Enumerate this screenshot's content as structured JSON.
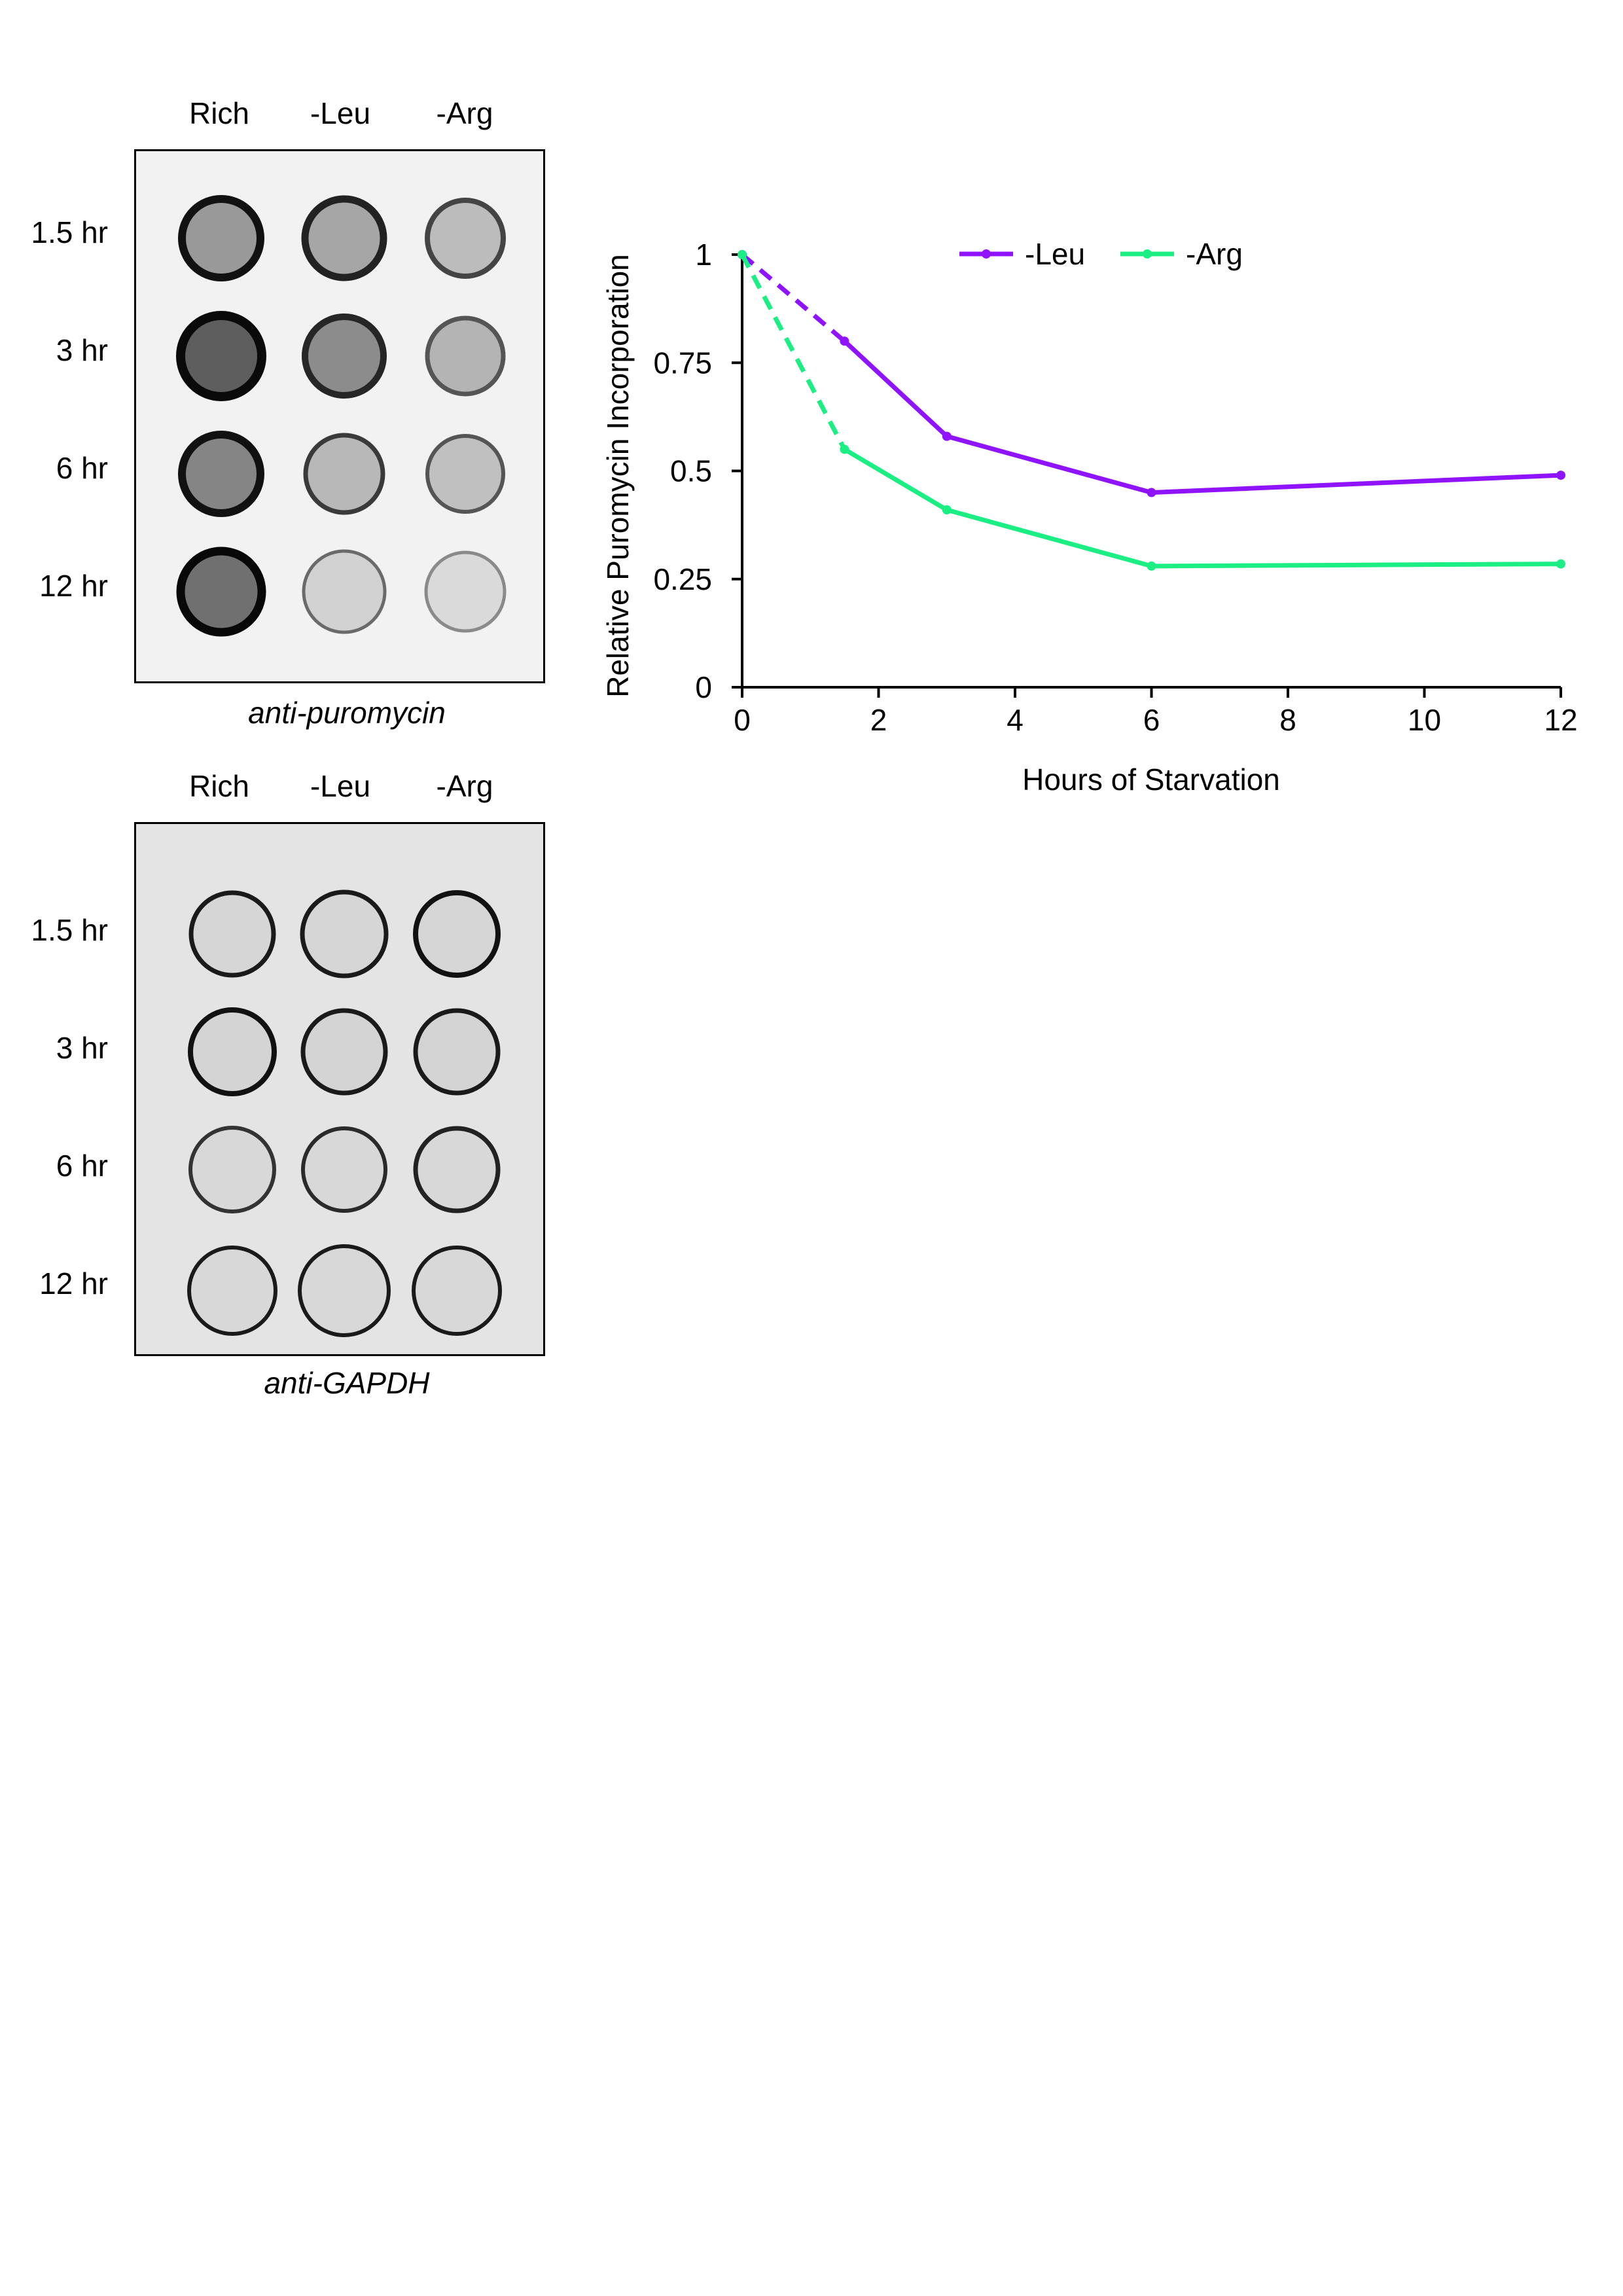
{
  "blot_top": {
    "columns": [
      "Rich",
      "-Leu",
      "-Arg"
    ],
    "rows": [
      "1.5 hr",
      "3 hr",
      "6 hr",
      "12 hr"
    ],
    "caption": "anti-puromycin"
  },
  "blot_bottom": {
    "columns": [
      "Rich",
      "-Leu",
      "-Arg"
    ],
    "rows": [
      "1.5 hr",
      "3 hr",
      "6 hr",
      "12 hr"
    ],
    "caption": "anti-GAPDH"
  },
  "chart_data": {
    "type": "line",
    "title": "",
    "xlabel": "Hours of Starvation",
    "ylabel": "Relative Puromycin Incorporation",
    "xlim": [
      0,
      12
    ],
    "ylim": [
      0,
      1
    ],
    "xticks": [
      "0",
      "2",
      "4",
      "6",
      "8",
      "10",
      "12"
    ],
    "yticks": [
      "0",
      "0.25",
      "0.5",
      "0.75",
      "1"
    ],
    "legend_position": "top-center",
    "grid": false,
    "series": [
      {
        "name": "-Leu",
        "color": "#9013FE",
        "x": [
          0,
          1.5,
          3,
          6,
          12
        ],
        "y": [
          1.0,
          0.8,
          0.58,
          0.45,
          0.49
        ],
        "dashed_until": 1.5
      },
      {
        "name": "-Arg",
        "color": "#1BEE82",
        "x": [
          0,
          1.5,
          3,
          6,
          12
        ],
        "y": [
          1.0,
          0.55,
          0.41,
          0.28,
          0.285
        ],
        "dashed_until": 1.5
      }
    ]
  }
}
